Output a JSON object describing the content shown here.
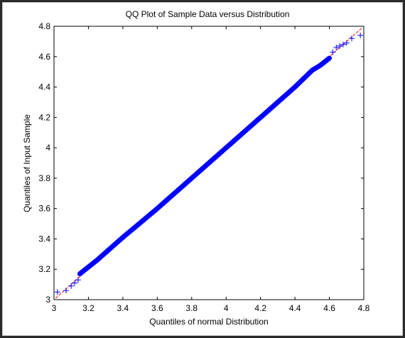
{
  "chart_data": {
    "type": "scatter",
    "title": "QQ Plot of Sample Data versus Distribution",
    "xlabel": "Quantiles of normal Distribution",
    "ylabel": "Quantiles of Input Sample",
    "xlim": [
      3,
      4.8
    ],
    "ylim": [
      3,
      4.8
    ],
    "xticks": [
      3,
      3.2,
      3.4,
      3.6,
      3.8,
      4,
      4.2,
      4.4,
      4.6,
      4.8
    ],
    "xtick_labels": [
      "3",
      "3.2",
      "3.4",
      "3.6",
      "3.8",
      "4",
      "4.2",
      "4.4",
      "4.6",
      "4.8"
    ],
    "yticks": [
      3,
      3.2,
      3.4,
      3.6,
      3.8,
      4,
      4.2,
      4.4,
      4.6,
      4.8
    ],
    "ytick_labels": [
      "3",
      "3.2",
      "3.4",
      "3.6",
      "3.8",
      "4",
      "4.2",
      "4.4",
      "4.6",
      "4.8"
    ],
    "grid": false,
    "marker": "+",
    "marker_color": "#0000ff",
    "reference_line_color": "#ff0000",
    "reference_line": {
      "x": [
        3.01,
        4.79
      ],
      "y": [
        3.01,
        4.79
      ]
    },
    "tail_points": {
      "x": [
        3.02,
        3.07,
        3.1,
        3.12,
        3.14,
        4.62,
        4.64,
        4.66,
        4.68,
        4.7,
        4.73,
        4.78
      ],
      "y": [
        3.05,
        3.06,
        3.09,
        3.11,
        3.13,
        4.63,
        4.66,
        4.67,
        4.68,
        4.69,
        4.72,
        4.74
      ]
    },
    "bulk_curve": {
      "x": [
        3.15,
        3.25,
        3.4,
        3.6,
        3.8,
        4.0,
        4.2,
        4.4,
        4.5,
        4.55,
        4.6
      ],
      "y": [
        3.17,
        3.26,
        3.41,
        3.6,
        3.8,
        4.0,
        4.2,
        4.4,
        4.51,
        4.545,
        4.59
      ]
    }
  }
}
